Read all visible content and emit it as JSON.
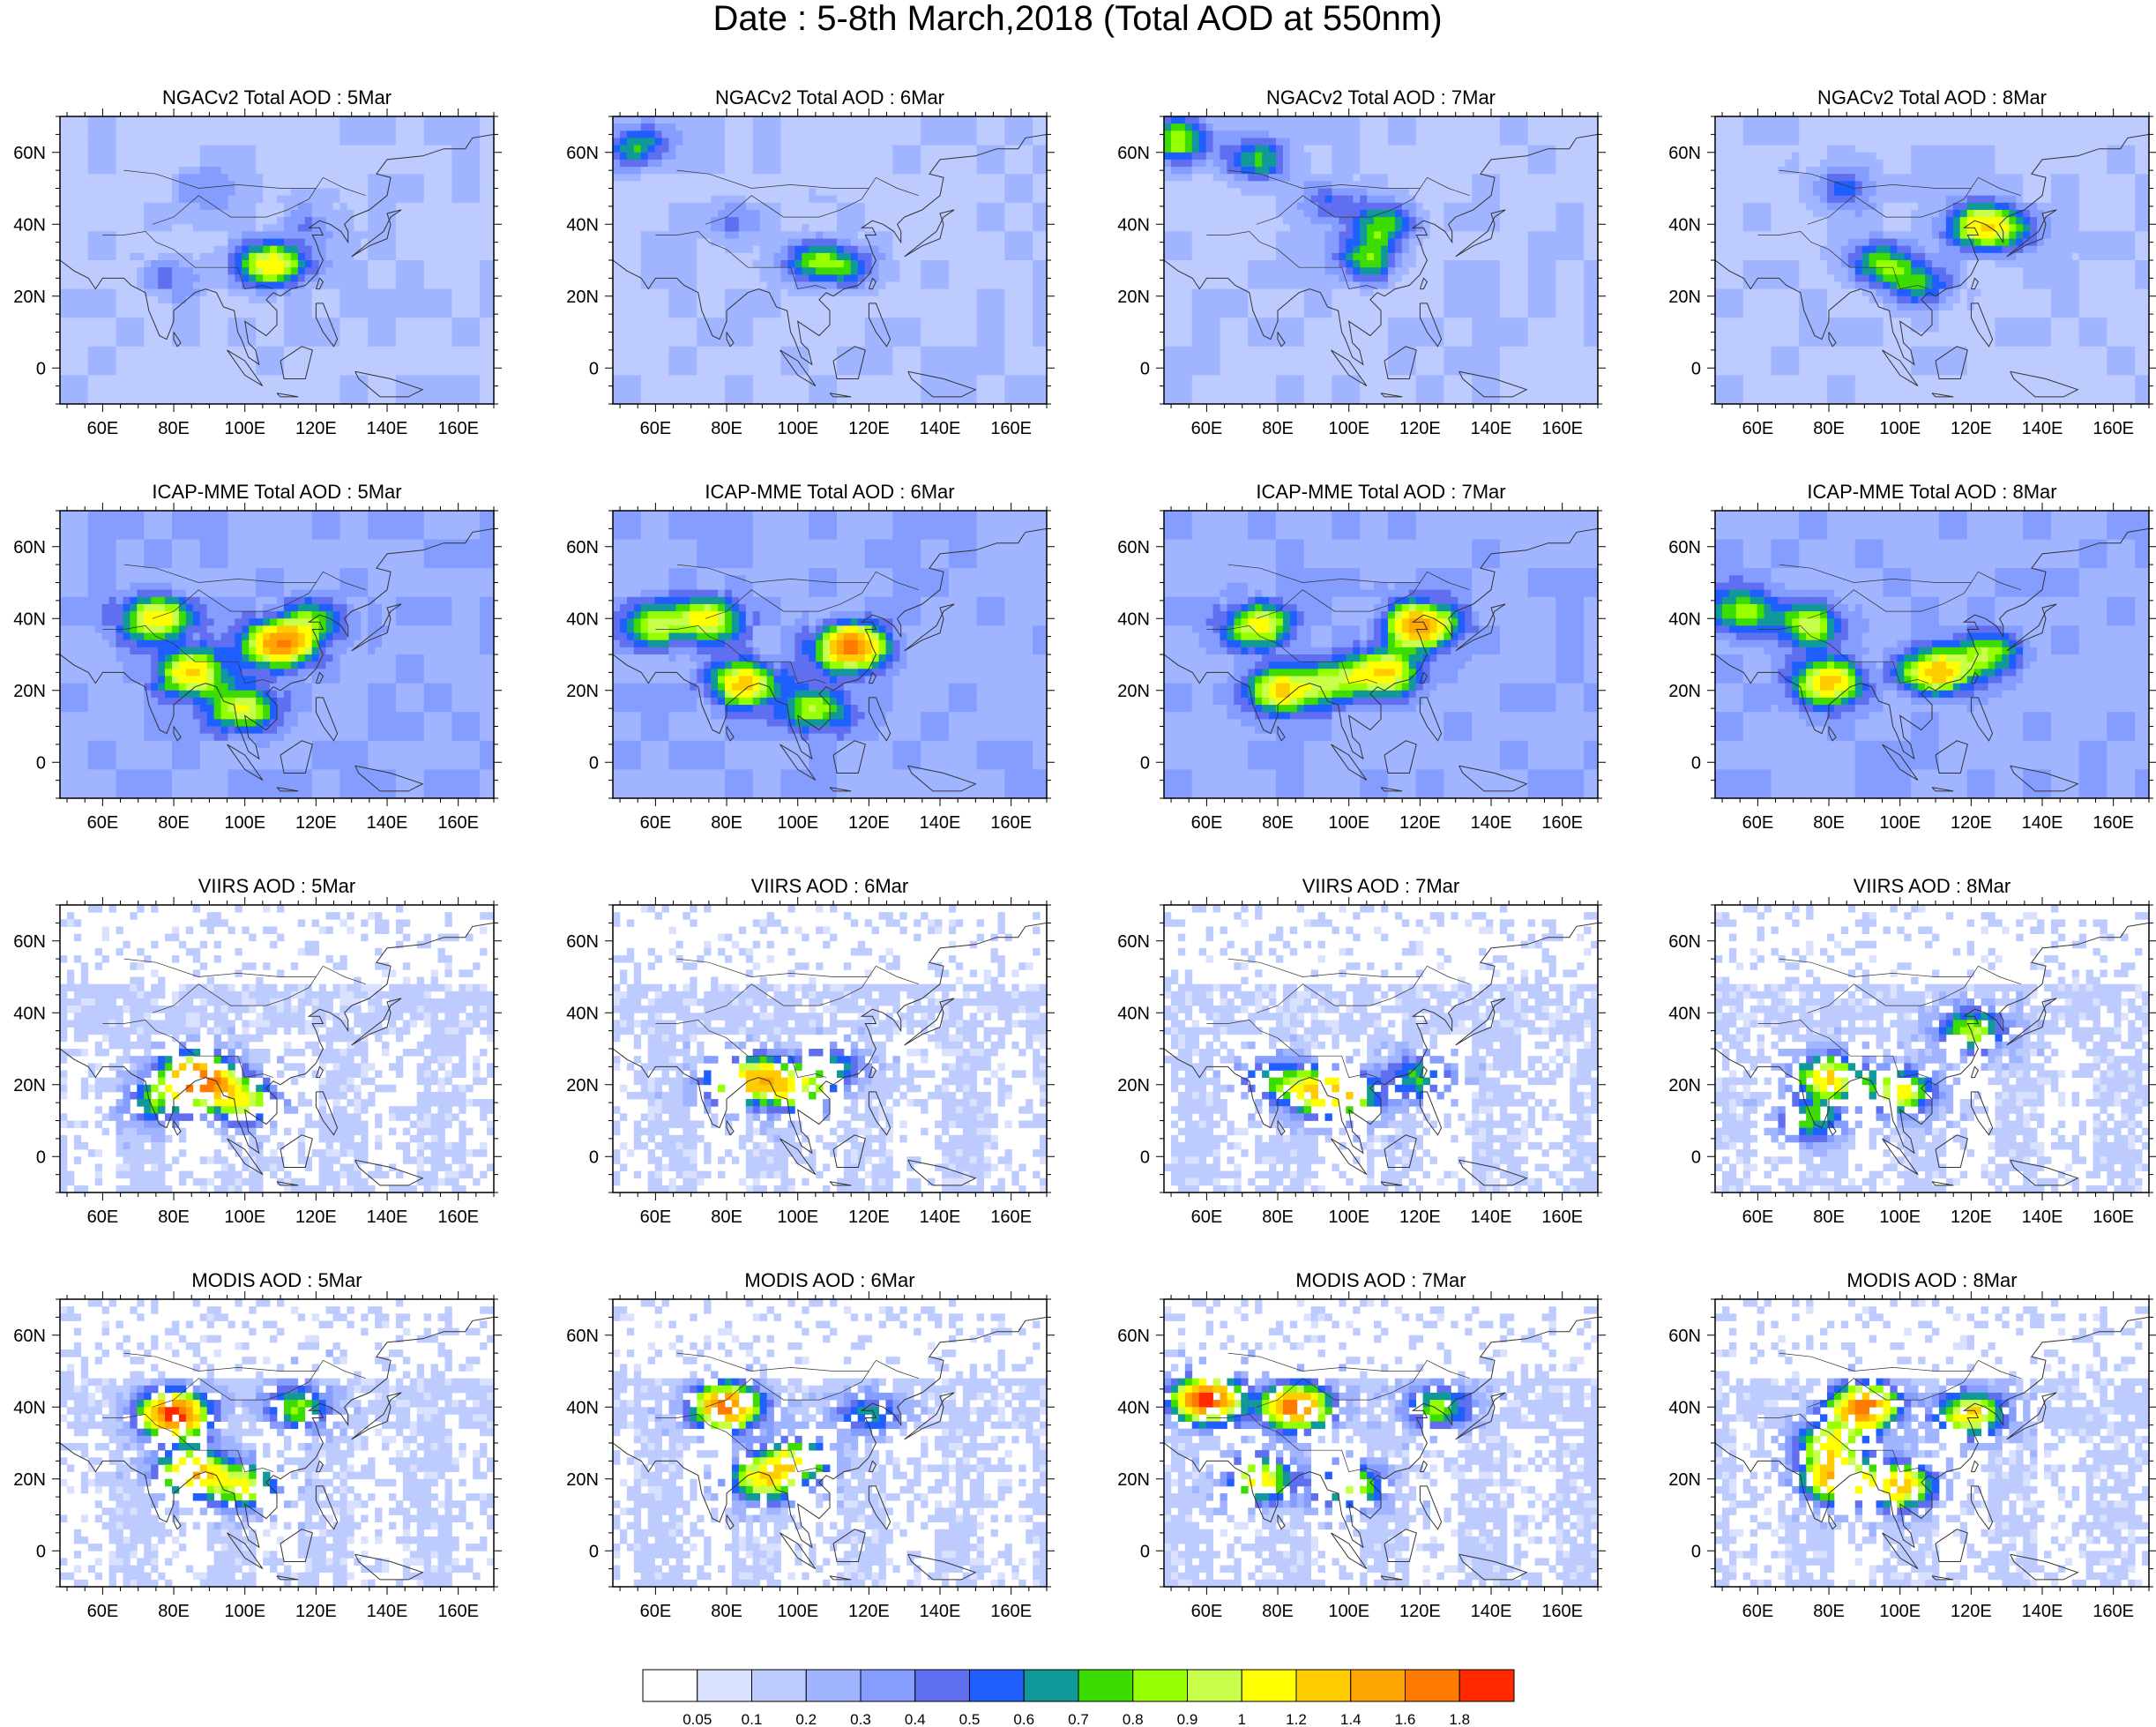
{
  "title": "Date : 5-8th March,2018 (Total AOD at 550nm)",
  "chart_data": {
    "type": "heatmap",
    "title": "Date : 5-8th March,2018 (Total AOD at 550nm)",
    "x_ticks": [
      "60E",
      "80E",
      "100E",
      "120E",
      "140E",
      "160E"
    ],
    "x_tick_values": [
      60,
      80,
      100,
      120,
      140,
      160
    ],
    "y_ticks": [
      "60N",
      "40N",
      "20N",
      "0"
    ],
    "y_tick_values": [
      60,
      40,
      20,
      0
    ],
    "xlim": [
      48,
      170
    ],
    "ylim": [
      -10,
      70
    ],
    "rows": [
      "NGACv2 Total AOD",
      "ICAP-MME Total AOD",
      "VIIRS AOD",
      "MODIS AOD"
    ],
    "columns": [
      "5Mar",
      "6Mar",
      "7Mar",
      "8Mar"
    ],
    "panel_titles": [
      [
        "NGACv2 Total AOD : 5Mar",
        "NGACv2 Total AOD : 6Mar",
        "NGACv2 Total AOD : 7Mar",
        "NGACv2 Total AOD : 8Mar"
      ],
      [
        "ICAP-MME Total AOD : 5Mar",
        "ICAP-MME Total AOD : 6Mar",
        "ICAP-MME Total AOD : 7Mar",
        "ICAP-MME Total AOD : 8Mar"
      ],
      [
        "VIIRS AOD : 5Mar",
        "VIIRS AOD : 6Mar",
        "VIIRS AOD : 7Mar",
        "VIIRS AOD : 8Mar"
      ],
      [
        "MODIS AOD : 5Mar",
        "MODIS AOD : 6Mar",
        "MODIS AOD : 7Mar",
        "MODIS AOD : 8Mar"
      ]
    ],
    "colorbar": {
      "labels": [
        "0.05",
        "0.1",
        "0.2",
        "0.3",
        "0.4",
        "0.5",
        "0.6",
        "0.7",
        "0.8",
        "0.9",
        "1",
        "1.2",
        "1.4",
        "1.6",
        "1.8"
      ],
      "colors": [
        "#ffffff",
        "#d9e1ff",
        "#bdcbff",
        "#a0b4ff",
        "#849dff",
        "#5f6ff0",
        "#1f5fff",
        "#119999",
        "#3cdc00",
        "#96ff00",
        "#c8ff4a",
        "#ffff00",
        "#ffcc00",
        "#ffa600",
        "#ff7a00",
        "#ff2800"
      ]
    },
    "hotspots": [
      [
        [
          [
            110,
            30,
            0.55
          ],
          [
            105,
            28,
            0.5
          ],
          [
            80,
            25,
            0.25
          ],
          [
            120,
            40,
            0.2
          ],
          [
            90,
            50,
            0.2
          ]
        ],
        [
          [
            55,
            62,
            0.5
          ],
          [
            105,
            30,
            0.6
          ],
          [
            115,
            28,
            0.35
          ],
          [
            80,
            40,
            0.2
          ]
        ],
        [
          [
            52,
            64,
            0.75
          ],
          [
            75,
            58,
            0.5
          ],
          [
            110,
            40,
            0.6
          ],
          [
            105,
            30,
            0.55
          ],
          [
            95,
            45,
            0.3
          ]
        ],
        [
          [
            122,
            40,
            0.8
          ],
          [
            95,
            30,
            0.6
          ],
          [
            105,
            23,
            0.5
          ],
          [
            85,
            50,
            0.35
          ],
          [
            130,
            38,
            0.45
          ]
        ]
      ],
      [
        [
          [
            110,
            33,
            1.3
          ],
          [
            85,
            25,
            1.0
          ],
          [
            75,
            40,
            0.9
          ],
          [
            100,
            15,
            0.8
          ],
          [
            120,
            40,
            0.5
          ]
        ],
        [
          [
            115,
            32,
            1.4
          ],
          [
            85,
            22,
            1.0
          ],
          [
            75,
            40,
            0.8
          ],
          [
            105,
            15,
            0.7
          ],
          [
            60,
            38,
            0.6
          ]
        ],
        [
          [
            120,
            38,
            1.3
          ],
          [
            110,
            25,
            1.0
          ],
          [
            80,
            20,
            0.9
          ],
          [
            75,
            38,
            0.8
          ],
          [
            95,
            22,
            0.6
          ]
        ],
        [
          [
            110,
            25,
            1.1
          ],
          [
            80,
            22,
            1.0
          ],
          [
            75,
            38,
            0.7
          ],
          [
            125,
            30,
            0.6
          ],
          [
            55,
            42,
            0.6
          ]
        ]
      ],
      [
        [
          [
            85,
            23,
            1.1
          ],
          [
            90,
            20,
            0.9
          ],
          [
            100,
            15,
            0.8
          ],
          [
            75,
            15,
            0.6
          ]
        ],
        [
          [
            90,
            22,
            1.0
          ],
          [
            100,
            18,
            0.7
          ],
          [
            80,
            20,
            0.6
          ],
          [
            110,
            25,
            0.5
          ]
        ],
        [
          [
            90,
            18,
            0.9
          ],
          [
            100,
            17,
            0.8
          ],
          [
            120,
            22,
            0.6
          ],
          [
            78,
            22,
            0.5
          ]
        ],
        [
          [
            80,
            22,
            1.1
          ],
          [
            100,
            18,
            1.0
          ],
          [
            120,
            35,
            0.8
          ],
          [
            75,
            10,
            0.6
          ]
        ]
      ],
      [
        [
          [
            80,
            38,
            1.8
          ],
          [
            85,
            22,
            1.3
          ],
          [
            100,
            18,
            0.9
          ],
          [
            115,
            40,
            0.7
          ]
        ],
        [
          [
            80,
            40,
            1.6
          ],
          [
            90,
            20,
            1.0
          ],
          [
            100,
            25,
            0.9
          ],
          [
            120,
            38,
            0.5
          ]
        ],
        [
          [
            85,
            40,
            1.6
          ],
          [
            60,
            42,
            1.8
          ],
          [
            75,
            20,
            1.0
          ],
          [
            100,
            18,
            0.9
          ],
          [
            125,
            40,
            0.7
          ]
        ],
        [
          [
            90,
            40,
            1.6
          ],
          [
            82,
            20,
            1.3
          ],
          [
            100,
            18,
            1.2
          ],
          [
            80,
            30,
            0.9
          ],
          [
            120,
            38,
            1.1
          ]
        ]
      ]
    ]
  }
}
